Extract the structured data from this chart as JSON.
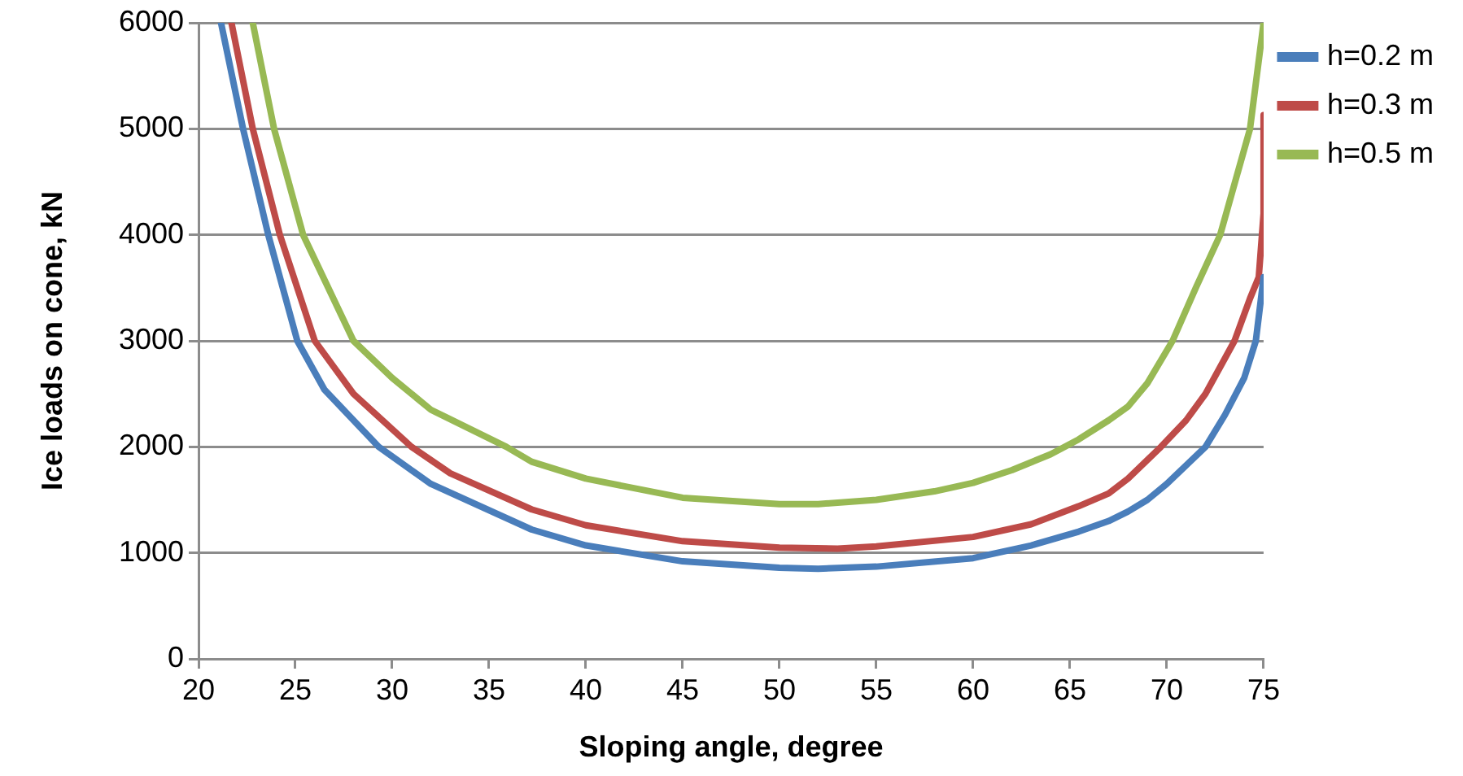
{
  "chart_data": {
    "type": "line",
    "xlabel": "Sloping angle, degree",
    "ylabel": "Ice loads on cone, kN",
    "xlim": [
      20,
      75
    ],
    "xticks": [
      20,
      25,
      30,
      35,
      40,
      45,
      50,
      55,
      60,
      65,
      70,
      75
    ],
    "ylim": [
      0,
      6000
    ],
    "yticks": [
      0,
      1000,
      2000,
      3000,
      4000,
      5000,
      6000
    ],
    "grid": "y",
    "legend": "right",
    "marker": "none",
    "line_style": "solid",
    "series": [
      {
        "name": "h=0.2 m",
        "color": "#4a7ebb",
        "x": [
          21.16,
          22.3,
          23.6,
          25.1,
          26.5,
          29.3,
          32,
          37.2,
          40,
          45,
          50,
          52,
          55,
          60,
          63,
          65.45,
          67,
          68,
          69,
          70,
          72,
          73,
          74,
          74.6,
          75
        ],
        "values": [
          6000,
          5000,
          4000,
          3000,
          2540,
          2000,
          1650,
          1220,
          1070,
          920,
          860,
          850,
          870,
          950,
          1070,
          1200,
          1300,
          1390,
          1500,
          1650,
          2000,
          2300,
          2650,
          3000,
          3600
        ]
      },
      {
        "name": "h=0.3 m",
        "color": "#be4b48",
        "x": [
          21.7,
          22.8,
          24.2,
          26,
          28,
          31,
          33,
          37.2,
          40,
          45,
          50,
          53,
          55,
          60,
          63,
          65.45,
          67,
          68,
          69.7,
          71,
          72,
          73.5,
          74.3,
          74.75,
          75,
          75
        ],
        "values": [
          6000,
          5000,
          4000,
          3000,
          2500,
          2000,
          1750,
          1410,
          1260,
          1110,
          1050,
          1040,
          1060,
          1150,
          1270,
          1440,
          1560,
          1700,
          2000,
          2250,
          2500,
          3000,
          3400,
          3600,
          4200,
          5130
        ]
      },
      {
        "name": "h=0.5 m",
        "color": "#98b954",
        "x": [
          22.8,
          23.9,
          25.4,
          28,
          30,
          32,
          35.9,
          37.2,
          40,
          45,
          50,
          52,
          55,
          58,
          60,
          62,
          64,
          65.45,
          67,
          68,
          69,
          70.3,
          71.5,
          72.76,
          74.3,
          75
        ],
        "values": [
          6000,
          5000,
          4000,
          3000,
          2650,
          2350,
          2000,
          1860,
          1700,
          1520,
          1460,
          1460,
          1500,
          1580,
          1660,
          1780,
          1930,
          2070,
          2250,
          2380,
          2600,
          3000,
          3500,
          4000,
          5000,
          6000
        ]
      }
    ]
  }
}
